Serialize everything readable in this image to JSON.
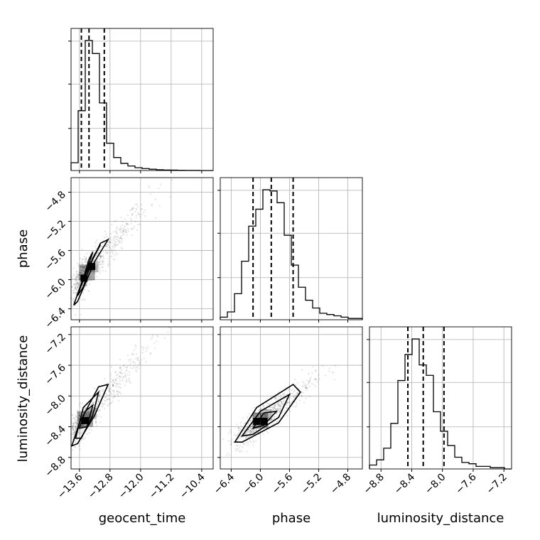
{
  "chart_data": {
    "type": "scatter",
    "plot_kind": "corner",
    "parameters": [
      "geocent_time",
      "phase",
      "luminosity_distance"
    ],
    "axes": {
      "geocent_time": {
        "label": "geocent_time",
        "range": [
          -13.82,
          -10.1
        ],
        "ticks": [
          -13.6,
          -12.8,
          -12.0,
          -11.2,
          -10.4
        ],
        "tick_labels": [
          "−13.6",
          "−12.8",
          "−12.0",
          "−11.2",
          "−10.4"
        ]
      },
      "phase": {
        "label": "phase",
        "range": [
          -6.55,
          -4.6
        ],
        "ticks": [
          -6.4,
          -6.0,
          -5.6,
          -5.2,
          -4.8
        ],
        "tick_labels": [
          "−6.4",
          "−6.0",
          "−5.6",
          "−5.2",
          "−4.8"
        ]
      },
      "luminosity_distance": {
        "label": "luminosity_distance",
        "range": [
          -8.95,
          -7.1
        ],
        "ticks": [
          -8.8,
          -8.4,
          -8.0,
          -7.6,
          -7.2
        ],
        "tick_labels": [
          "−8.8",
          "−8.4",
          "−8.0",
          "−7.6",
          "−7.2"
        ]
      }
    },
    "histograms": {
      "geocent_time": {
        "edges": [
          -13.82,
          -13.634,
          -13.448,
          -13.262,
          -13.076,
          -12.89,
          -12.704,
          -12.518,
          -12.332,
          -12.146,
          -11.96,
          -11.774,
          -11.588,
          -11.402,
          -11.216,
          -11.03,
          -10.844,
          -10.658,
          -10.472,
          -10.286,
          -10.1
        ],
        "counts": [
          0.06,
          0.46,
          1.0,
          0.9,
          0.52,
          0.21,
          0.1,
          0.055,
          0.035,
          0.022,
          0.015,
          0.01,
          0.006,
          0.004,
          0.003,
          0.002,
          0.001,
          0.001,
          0.0,
          0.0
        ],
        "quantiles": [
          -13.55,
          -13.35,
          -12.95
        ]
      },
      "phase": {
        "edges": [
          -6.55,
          -6.4525,
          -6.355,
          -6.2575,
          -6.16,
          -6.0625,
          -5.965,
          -5.8675,
          -5.77,
          -5.6725,
          -5.575,
          -5.4775,
          -5.38,
          -5.2825,
          -5.185,
          -5.0875,
          -4.99,
          -4.8925,
          -4.795,
          -4.6975,
          -4.6
        ],
        "counts": [
          0.02,
          0.06,
          0.2,
          0.45,
          0.72,
          0.85,
          1.0,
          0.99,
          0.9,
          0.65,
          0.42,
          0.25,
          0.15,
          0.09,
          0.05,
          0.04,
          0.03,
          0.02,
          0.01,
          0.01
        ],
        "quantiles": [
          -6.1,
          -5.85,
          -5.55
        ]
      },
      "luminosity_distance": {
        "edges": [
          -8.95,
          -8.8575,
          -8.765,
          -8.6725,
          -8.58,
          -8.4875,
          -8.395,
          -8.3025,
          -8.21,
          -8.1175,
          -8.025,
          -7.9325,
          -7.84,
          -7.7475,
          -7.655,
          -7.5625,
          -7.47,
          -7.3775,
          -7.285,
          -7.1925,
          -7.1
        ],
        "counts": [
          0.03,
          0.07,
          0.16,
          0.35,
          0.68,
          0.88,
          1.0,
          0.8,
          0.72,
          0.44,
          0.29,
          0.18,
          0.09,
          0.05,
          0.04,
          0.02,
          0.02,
          0.01,
          0.01,
          0.0
        ],
        "quantiles": [
          -8.45,
          -8.25,
          -7.98
        ]
      }
    },
    "joint": {
      "phase_vs_geocent_time": {
        "x": "geocent_time",
        "y": "phase",
        "center": [
          -13.4,
          -5.9
        ],
        "contours": [
          [
            [
              -13.55,
              -6.08
            ],
            [
              -13.35,
              -5.72
            ],
            [
              -13.25,
              -5.62
            ],
            [
              -13.45,
              -5.95
            ]
          ],
          [
            [
              -13.65,
              -6.22
            ],
            [
              -13.42,
              -5.88
            ],
            [
              -13.05,
              -5.52
            ],
            [
              -13.25,
              -5.7
            ],
            [
              -13.5,
              -6.1
            ]
          ],
          [
            [
              -13.75,
              -6.35
            ],
            [
              -13.55,
              -6.05
            ],
            [
              -13.05,
              -5.5
            ],
            [
              -12.85,
              -5.45
            ],
            [
              -13.2,
              -5.75
            ],
            [
              -13.65,
              -6.3
            ]
          ]
        ],
        "density_peaks": [
          [
            -13.48,
            -5.98
          ],
          [
            -13.28,
            -5.82
          ]
        ]
      },
      "luminosity_distance_vs_geocent_time": {
        "x": "geocent_time",
        "y": "luminosity_distance",
        "center": [
          -13.45,
          -8.3
        ],
        "contours": [
          [
            [
              -13.6,
              -8.42
            ],
            [
              -13.45,
              -8.2
            ],
            [
              -13.25,
              -8.12
            ],
            [
              -13.4,
              -8.4
            ]
          ],
          [
            [
              -13.7,
              -8.55
            ],
            [
              -13.5,
              -8.15
            ],
            [
              -13.1,
              -7.95
            ],
            [
              -13.25,
              -8.25
            ],
            [
              -13.55,
              -8.55
            ]
          ],
          [
            [
              -13.8,
              -8.65
            ],
            [
              -13.6,
              -8.35
            ],
            [
              -13.1,
              -7.88
            ],
            [
              -12.85,
              -7.85
            ],
            [
              -13.2,
              -8.25
            ],
            [
              -13.65,
              -8.62
            ]
          ]
        ],
        "density_peaks": [
          [
            -13.45,
            -8.32
          ]
        ]
      },
      "luminosity_distance_vs_phase": {
        "x": "phase",
        "y": "luminosity_distance",
        "center": [
          -6.0,
          -8.32
        ],
        "contours": [
          [
            [
              -6.1,
              -8.42
            ],
            [
              -5.95,
              -8.22
            ],
            [
              -5.78,
              -8.2
            ],
            [
              -5.95,
              -8.38
            ]
          ],
          [
            [
              -6.25,
              -8.52
            ],
            [
              -6.0,
              -8.2
            ],
            [
              -5.6,
              -7.98
            ],
            [
              -5.75,
              -8.28
            ],
            [
              -6.1,
              -8.5
            ]
          ],
          [
            [
              -6.35,
              -8.6
            ],
            [
              -6.05,
              -8.15
            ],
            [
              -5.55,
              -7.85
            ],
            [
              -5.45,
              -7.95
            ],
            [
              -5.75,
              -8.35
            ],
            [
              -6.25,
              -8.6
            ]
          ]
        ],
        "density_peaks": [
          [
            -6.05,
            -8.33
          ],
          [
            -5.95,
            -8.33
          ]
        ]
      }
    },
    "grid": true,
    "legend": "none"
  }
}
